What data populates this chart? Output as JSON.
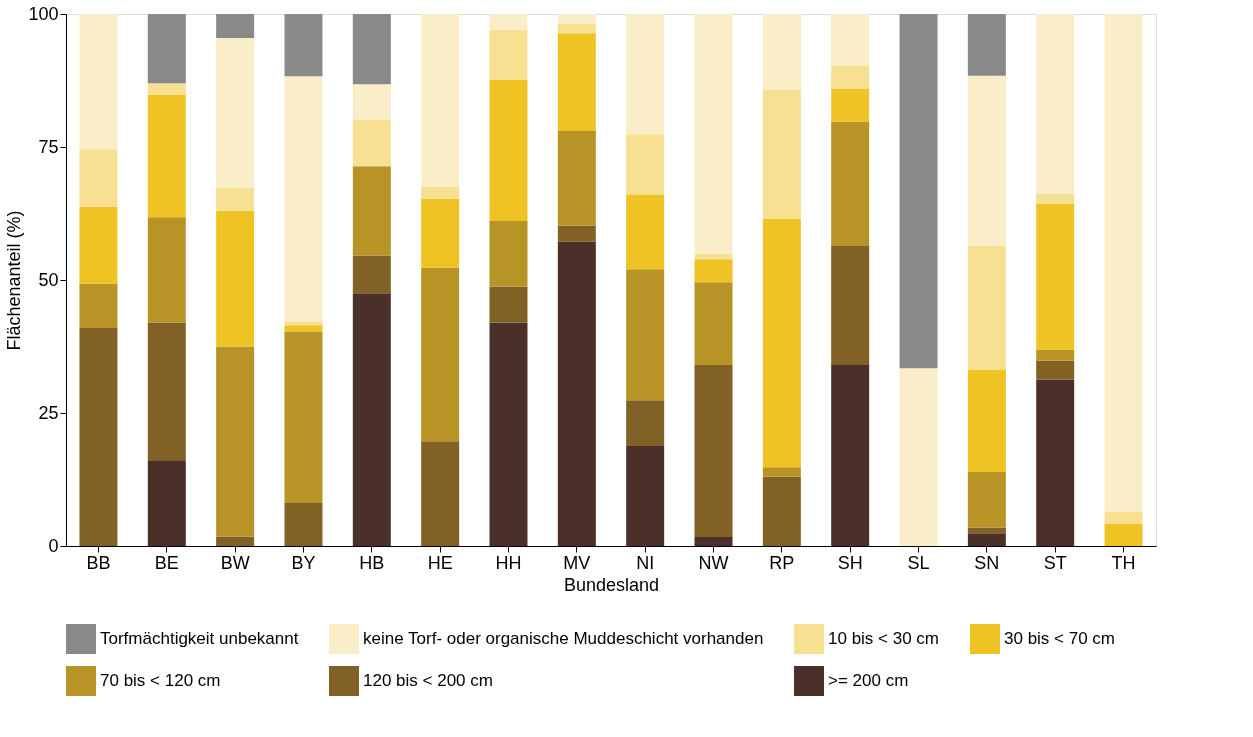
{
  "chart_data": {
    "type": "bar",
    "stacked": true,
    "xlabel": "Bundesland",
    "ylabel": "Flächenanteil (%)",
    "categories": [
      "BB",
      "BE",
      "BW",
      "BY",
      "HB",
      "HE",
      "HH",
      "MV",
      "NI",
      "NW",
      "RP",
      "SH",
      "SL",
      "SN",
      "ST",
      "TH"
    ],
    "ylim": [
      0,
      100
    ],
    "yticks": [
      0,
      25,
      50,
      75,
      100
    ],
    "grid": false,
    "legend": "bottom",
    "series": [
      {
        "name": ">= 200 cm",
        "color": "#4a3028",
        "values": [
          0,
          16,
          0,
          0,
          47.5,
          0,
          42,
          57.2,
          18.8,
          1.7,
          0,
          34,
          0,
          2.4,
          31.3,
          0
        ]
      },
      {
        "name": "120 bis < 200 cm",
        "color": "#826127",
        "values": [
          41,
          26,
          1.8,
          8.1,
          7.1,
          19.7,
          6.8,
          3,
          8.6,
          32.3,
          13,
          22.4,
          0,
          1.1,
          3.5,
          0
        ]
      },
      {
        "name": "70 bis < 120 cm",
        "color": "#b89427",
        "values": [
          8.3,
          19.8,
          35.7,
          32.2,
          16.8,
          32.6,
          12.3,
          17.8,
          24.6,
          15.6,
          1.8,
          23.4,
          0,
          10.4,
          2.1,
          0
        ]
      },
      {
        "name": "30 bis < 70 cm",
        "color": "#efc324",
        "values": [
          14.4,
          23,
          25.5,
          1.2,
          0,
          13,
          26.5,
          18.4,
          14,
          4.3,
          46.7,
          6.2,
          0,
          19.3,
          27.4,
          4.2
        ]
      },
      {
        "name": "10 bis < 30 cm",
        "color": "#f7e091",
        "values": [
          10.9,
          2.2,
          4.3,
          0.7,
          8.8,
          2.2,
          9.5,
          1.7,
          11.4,
          1.0,
          24.2,
          4.3,
          0,
          23.3,
          1.9,
          2.2
        ]
      },
      {
        "name": "keine Torf- oder organische Muddeschicht vorhanden",
        "color": "#faeec8",
        "values": [
          25.4,
          0,
          28.2,
          46.1,
          6.6,
          32.5,
          2.9,
          1.9,
          22.6,
          45.1,
          14.3,
          9.7,
          33.4,
          31.9,
          33.8,
          93.6
        ]
      },
      {
        "name": "Torfmächtigkeit unbekannt",
        "color": "#898989",
        "values": [
          0,
          13,
          4.5,
          11.7,
          13.2,
          0,
          0,
          0,
          0,
          0,
          0,
          0,
          66.6,
          11.6,
          0,
          0
        ]
      }
    ]
  }
}
